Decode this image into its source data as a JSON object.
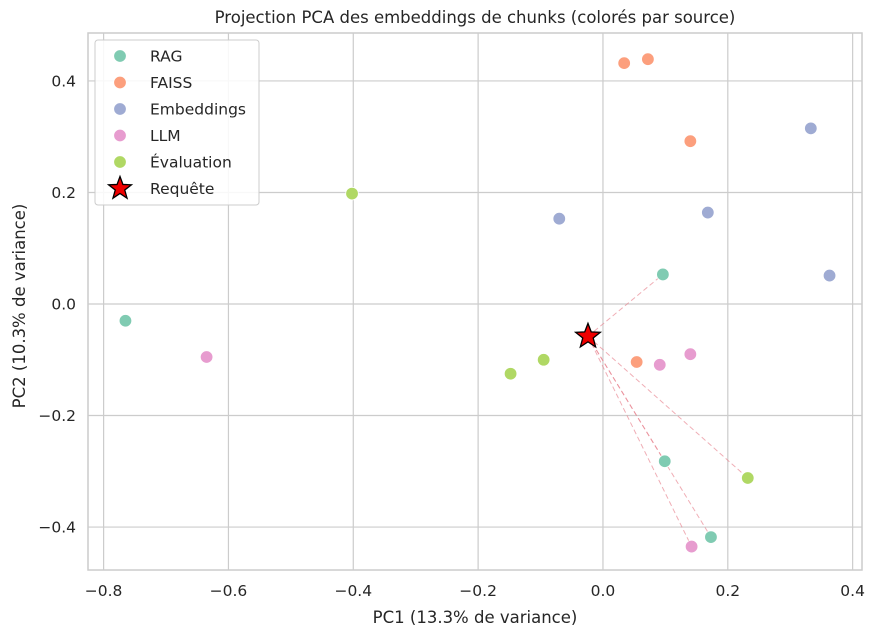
{
  "chart_data": {
    "type": "scatter",
    "title": "Projection PCA des embeddings de chunks (colorés par source)",
    "xlabel": "PC1 (13.3% de variance)",
    "ylabel": "PC2 (10.3% de variance)",
    "xlim": [
      -0.825,
      0.415
    ],
    "ylim": [
      -0.477,
      0.486
    ],
    "grid": true,
    "legend_position": "top-left",
    "x_ticks": [
      {
        "value": -0.8,
        "label": "−0.8"
      },
      {
        "value": -0.6,
        "label": "−0.6"
      },
      {
        "value": -0.4,
        "label": "−0.4"
      },
      {
        "value": -0.2,
        "label": "−0.2"
      },
      {
        "value": 0.0,
        "label": "0.0"
      },
      {
        "value": 0.2,
        "label": "0.2"
      },
      {
        "value": 0.4,
        "label": "0.4"
      }
    ],
    "y_ticks": [
      {
        "value": -0.4,
        "label": "−0.4"
      },
      {
        "value": -0.2,
        "label": "−0.2"
      },
      {
        "value": 0.0,
        "label": "0.0"
      },
      {
        "value": 0.2,
        "label": "0.2"
      },
      {
        "value": 0.4,
        "label": "0.4"
      }
    ],
    "series": [
      {
        "name": "RAG",
        "color": "#80cbb2",
        "points": [
          [
            -0.765,
            -0.03
          ],
          [
            0.096,
            0.053
          ],
          [
            0.099,
            -0.282
          ],
          [
            0.173,
            -0.418
          ]
        ]
      },
      {
        "name": "FAISS",
        "color": "#fc9f7d",
        "points": [
          [
            0.034,
            0.432
          ],
          [
            0.072,
            0.439
          ],
          [
            0.14,
            0.292
          ],
          [
            0.054,
            -0.104
          ]
        ]
      },
      {
        "name": "Embeddings",
        "color": "#9fabd3",
        "points": [
          [
            -0.07,
            0.153
          ],
          [
            0.168,
            0.164
          ],
          [
            0.333,
            0.315
          ],
          [
            0.363,
            0.051
          ]
        ]
      },
      {
        "name": "LLM",
        "color": "#e79ccf",
        "points": [
          [
            -0.635,
            -0.095
          ],
          [
            0.14,
            -0.09
          ],
          [
            0.091,
            -0.109
          ],
          [
            0.142,
            -0.435
          ]
        ]
      },
      {
        "name": "Évaluation",
        "color": "#b0d864",
        "points": [
          [
            -0.402,
            0.198
          ],
          [
            -0.095,
            -0.1
          ],
          [
            -0.148,
            -0.125
          ],
          [
            0.232,
            -0.312
          ]
        ]
      }
    ],
    "query": {
      "name": "Requête",
      "color": "#ee0000",
      "x": -0.024,
      "y": -0.058
    },
    "query_links": [
      [
        0.096,
        0.053
      ],
      [
        0.099,
        -0.282
      ],
      [
        0.173,
        -0.418
      ],
      [
        0.232,
        -0.312
      ],
      [
        0.142,
        -0.435
      ]
    ]
  }
}
